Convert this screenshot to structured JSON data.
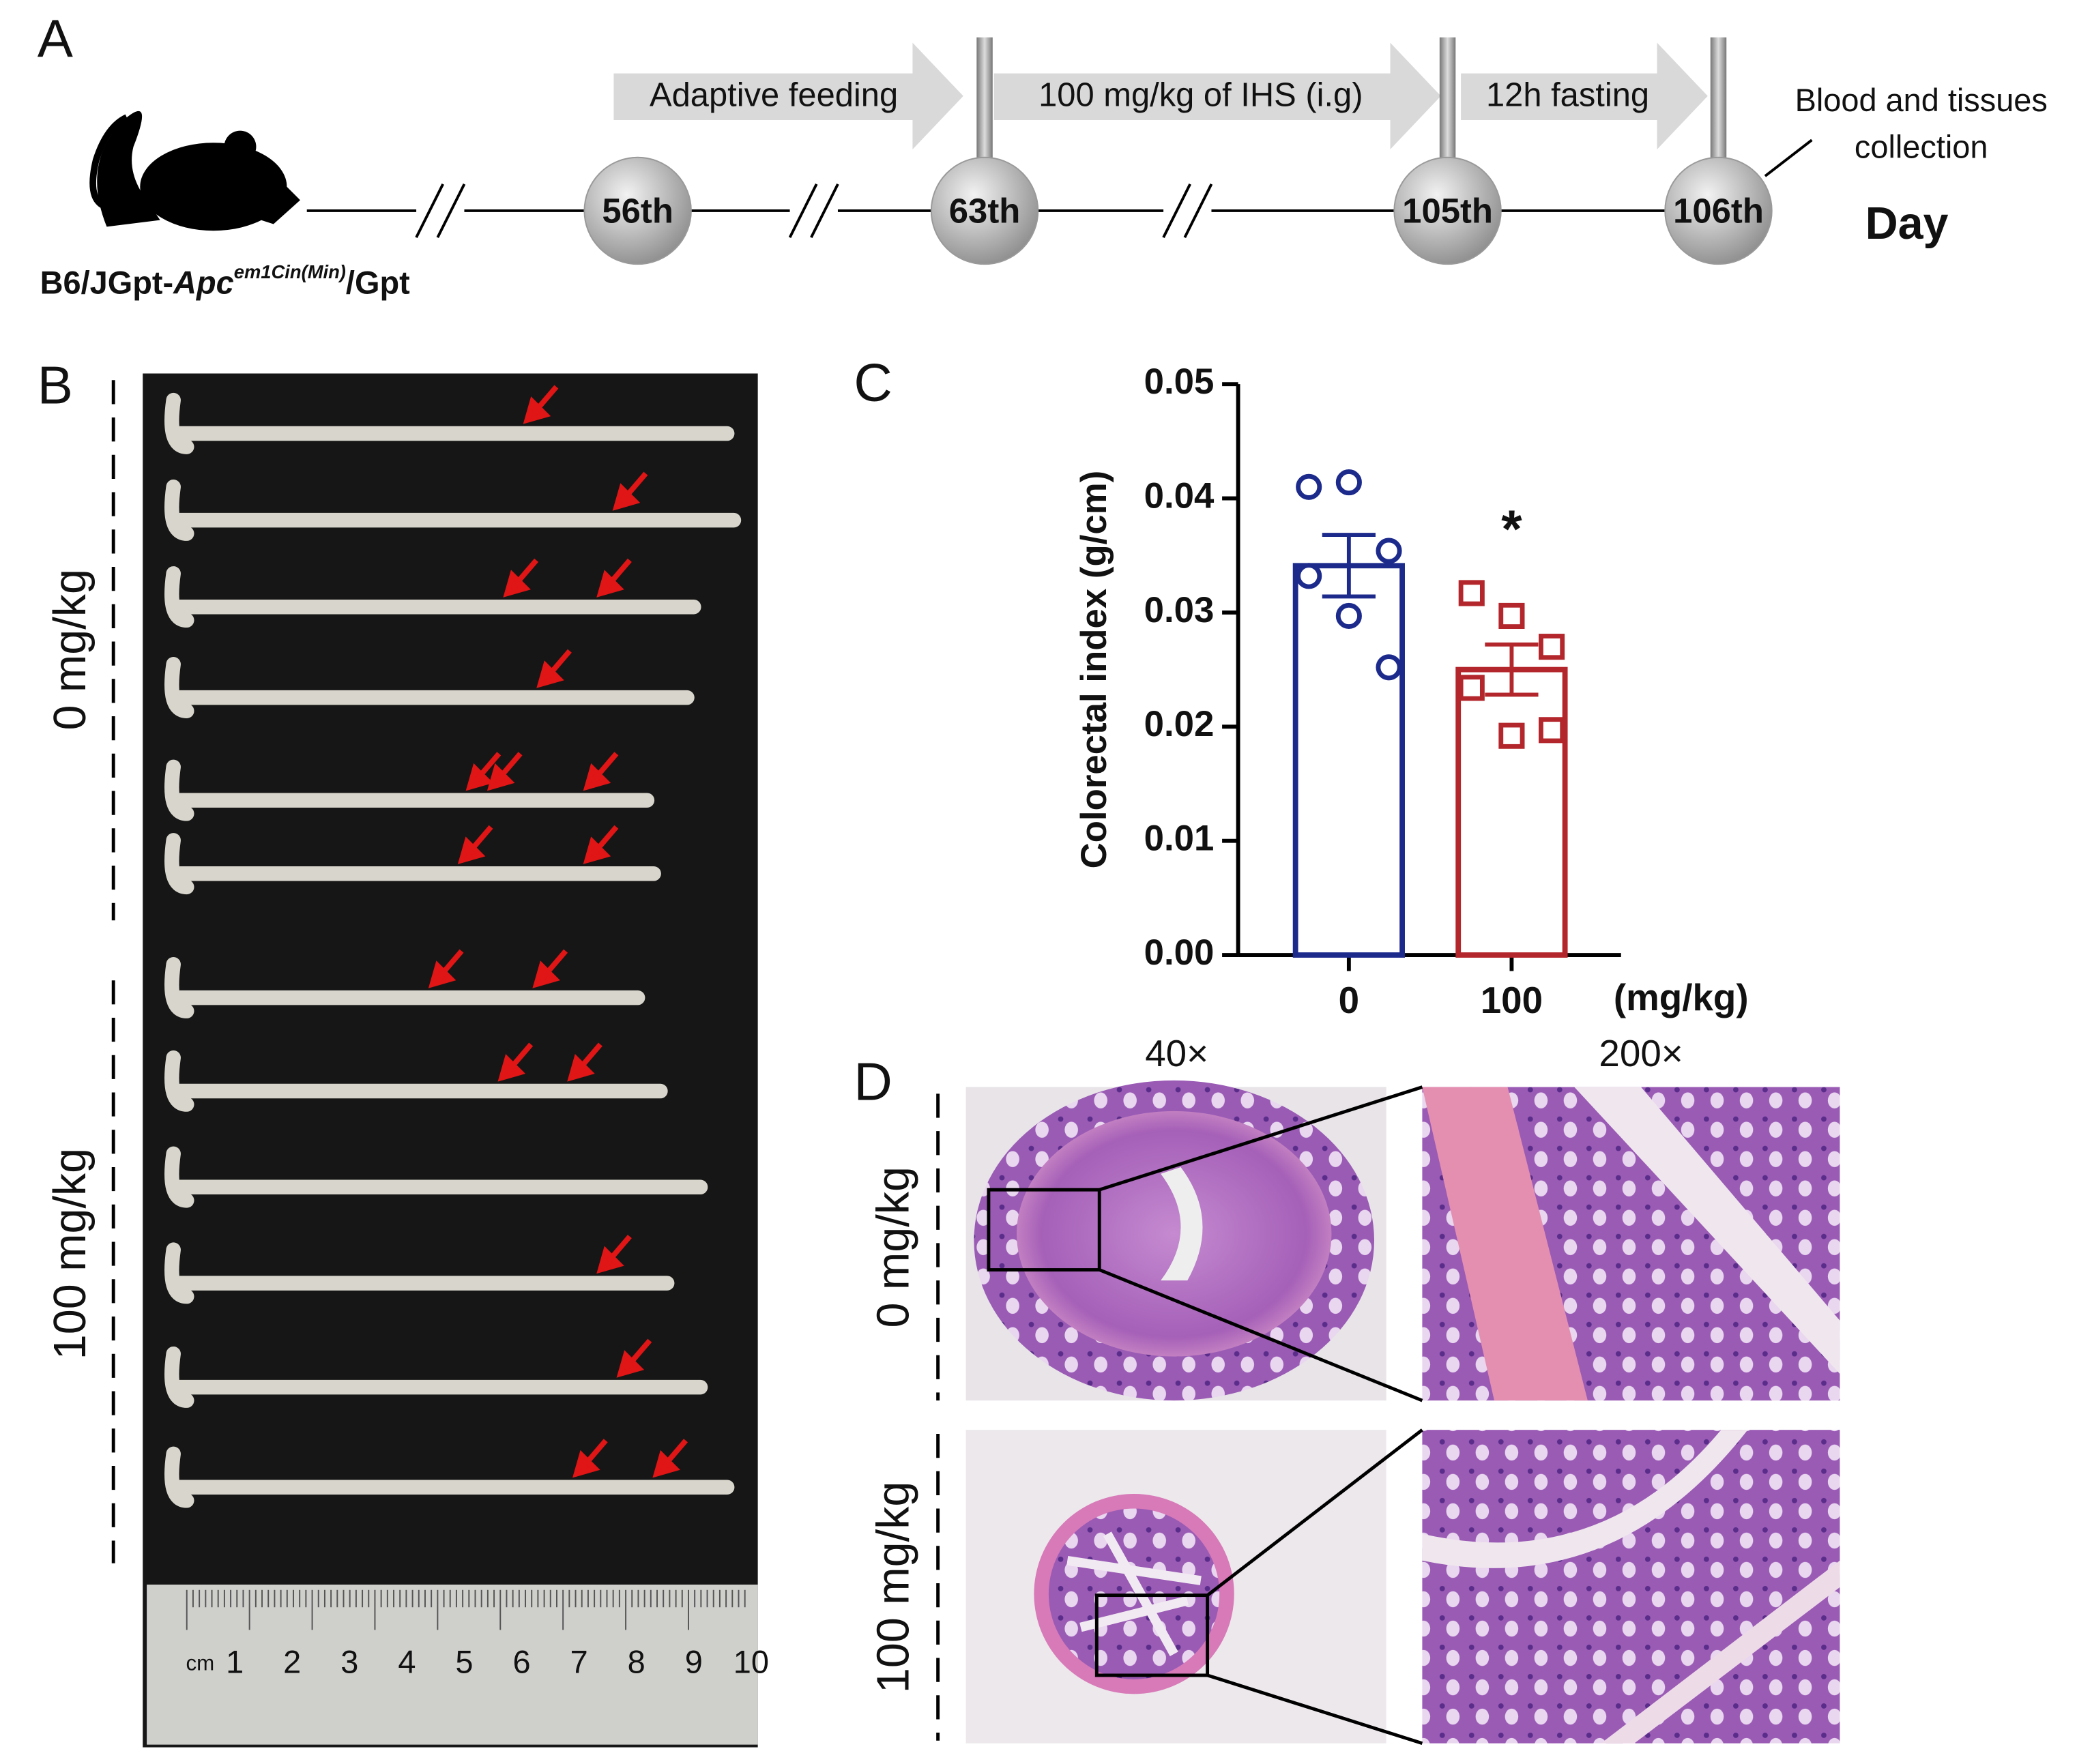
{
  "panel_labels": [
    "A",
    "B",
    "C",
    "D"
  ],
  "panel_a": {
    "steps": [
      "Adaptive feeding",
      "100 mg/kg of IHS (i.g)",
      "12h fasting"
    ],
    "end_note": [
      "Blood and tissues",
      "collection"
    ],
    "days": [
      "56th",
      "63th",
      "105th",
      "106th"
    ],
    "day_label": "Day",
    "strain": {
      "prefix": "B6/JGpt-",
      "gene": "Apc",
      "superscript": "em1Cin(Min)",
      "suffix": "/Gpt"
    }
  },
  "panel_b": {
    "groups": [
      "0 mg/kg",
      "100 mg/kg"
    ],
    "ruler": [
      "cm",
      "1",
      "2",
      "3",
      "4",
      "5",
      "6",
      "7",
      "8",
      "9",
      "10"
    ]
  },
  "chart_data": {
    "type": "bar",
    "ylabel": "Colorectal index (g/cm)",
    "categories": [
      "0",
      "100"
    ],
    "unit_label": "(mg/kg)",
    "values": [
      0.0341,
      0.025
    ],
    "errors": [
      0.0027,
      0.0022
    ],
    "colors": [
      "#1c2a8c",
      "#b3262b"
    ],
    "points": [
      [
        0.041,
        0.0414,
        0.0354,
        0.0332,
        0.0297,
        0.0252
      ],
      [
        0.0317,
        0.0297,
        0.027,
        0.0234,
        0.0192,
        0.0197
      ]
    ],
    "markers": [
      "circle",
      "square"
    ],
    "annotations": [
      {
        "category": "100",
        "text": "*"
      }
    ],
    "ylim": [
      0,
      0.05
    ],
    "yticks": [
      {
        "value": 0,
        "label": "0.00"
      },
      0.01,
      0.02,
      0.03,
      0.04,
      0.05
    ]
  },
  "panel_d": {
    "magnifications": [
      "40×",
      "200×"
    ],
    "groups": [
      "0 mg/kg",
      "100 mg/kg"
    ]
  }
}
